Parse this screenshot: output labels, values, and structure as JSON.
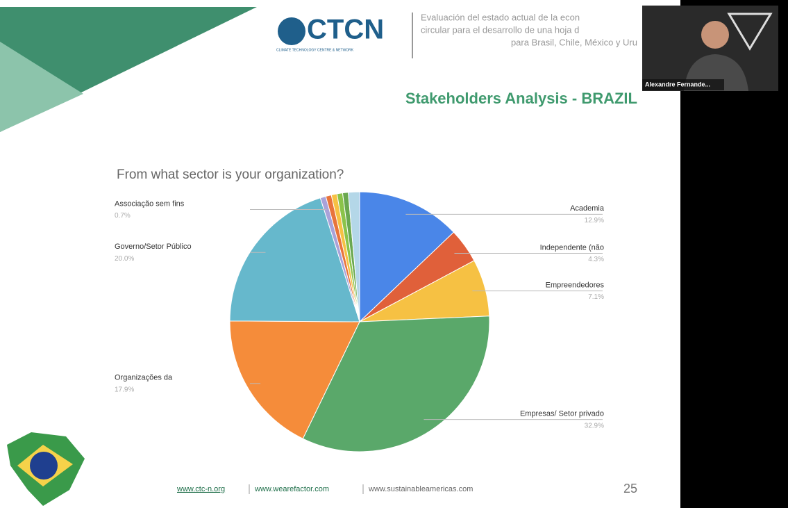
{
  "header": {
    "logo": "CTCN",
    "logo_subtitle": "CLIMATE TECHNOLOGY CENTRE & NETWORK",
    "description": [
      "Evaluación del estado actual de la econ",
      "circular para el desarrollo de una hoja d",
      "para Brasil, Chile, México y Uru"
    ]
  },
  "slide_title": "Stakeholders Analysis - BRAZIL",
  "chart_data": {
    "type": "pie",
    "title": "From what sector is your organization?",
    "categories": [
      "Academia",
      "Independente (não",
      "Empreendedores",
      "Empresas/ Setor privado",
      "Organizações da",
      "Governo/Setor Público",
      "Associação sem fins",
      null,
      null,
      null,
      null,
      null
    ],
    "values": [
      12.9,
      4.3,
      7.1,
      32.9,
      17.9,
      20.0,
      0.7,
      0.7,
      0.7,
      0.7,
      0.7,
      1.4
    ],
    "value_labels": [
      "12.9%",
      "4.3%",
      "7.1%",
      "32.9%",
      "17.9%",
      "20.0%",
      "0.7%",
      null,
      null,
      null,
      null,
      null
    ],
    "colors": [
      "#4a86e8",
      "#e0603a",
      "#f6c143",
      "#5aa86a",
      "#f58c3a",
      "#66b8cc",
      "#a9a2d9",
      "#e8743b",
      "#f6c143",
      "#8bc34a",
      "#6aa84f",
      "#b4d7e8"
    ]
  },
  "footer": {
    "links": [
      "www.ctc-n.org",
      "www.wearefactor.com",
      "www.sustainableamericas.com"
    ],
    "page_number": "25"
  },
  "video_tile": {
    "name": "Alexandre Fernande..."
  }
}
